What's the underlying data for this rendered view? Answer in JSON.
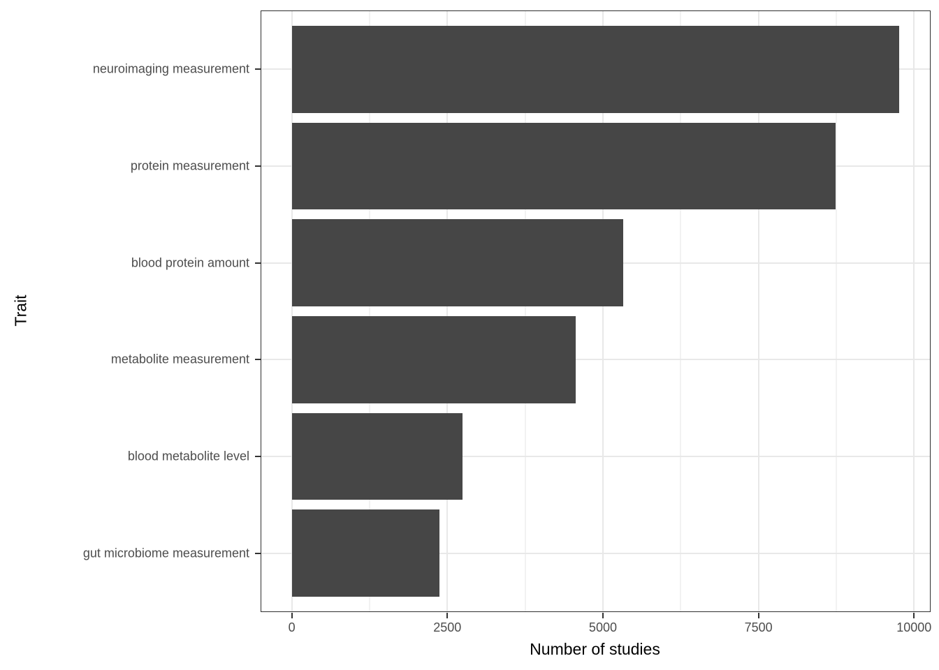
{
  "chart_data": {
    "type": "bar",
    "orientation": "horizontal",
    "title": "",
    "categories": [
      "neuroimaging measurement",
      "protein measurement",
      "blood protein amount",
      "metabolite measurement",
      "blood metabolite level",
      "gut microbiome measurement"
    ],
    "values": [
      9760,
      8740,
      5330,
      4560,
      2740,
      2370
    ],
    "xlabel": "Number of studies",
    "ylabel": "Trait",
    "x_ticks": [
      0,
      2500,
      5000,
      7500,
      10000
    ],
    "x_tick_labels": [
      "0",
      "2500",
      "5000",
      "7500",
      "10000"
    ],
    "x_minor_ticks": [
      1250,
      3750,
      6250,
      8750
    ],
    "xlim": [
      -490,
      10255
    ],
    "grid": true,
    "legend": false,
    "colors": {
      "bar_fill": "#464646",
      "panel_border": "#2e2e2e",
      "grid_major": "#e8e8e8",
      "grid_minor": "#f2f2f2",
      "tick_mark": "#333333",
      "tick_label": "#4d4d4d",
      "axis_title": "#000000",
      "background": "#ffffff"
    }
  }
}
